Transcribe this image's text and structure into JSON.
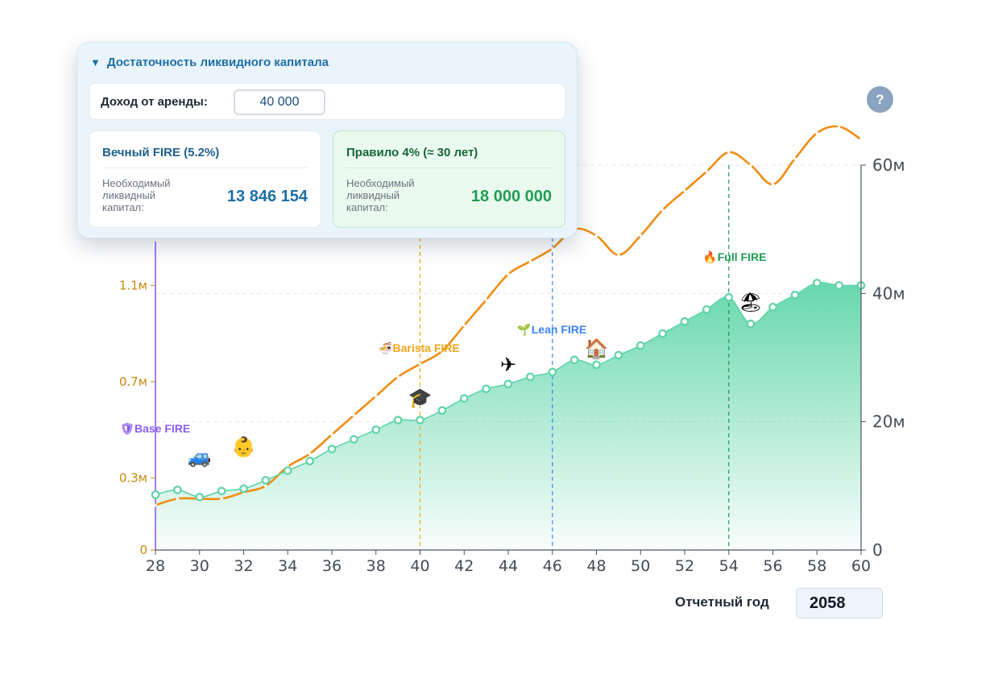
{
  "popup": {
    "title": "Достаточность ликвидного капитала",
    "rent": {
      "label": "Доход от аренды:",
      "value": "40 000"
    },
    "cards": [
      {
        "title": "Вечный FIRE (5.2%)",
        "subtitle": "Необходимый ликвидный капитал:",
        "value": "13 846 154",
        "color": "#1d6fa5"
      },
      {
        "title": "Правило 4% (≈ 30 лет)",
        "subtitle": "Необходимый ликвидный капитал:",
        "value": "18 000 000",
        "color": "#1f9d55"
      }
    ]
  },
  "help_button": {
    "label": "?"
  },
  "report_year": {
    "label": "Отчетный год",
    "value": "2058"
  },
  "colors": {
    "orange": "#f28c12",
    "teal": "#5fd3a8",
    "area_top": "#63d9ae",
    "purple": "#8b5cf6",
    "blue": "#3b82f6",
    "green": "#1f9d55",
    "barista": "#f2a516"
  },
  "chart_data": {
    "type": "line",
    "x": [
      28,
      29,
      30,
      31,
      32,
      33,
      34,
      35,
      36,
      37,
      38,
      39,
      40,
      41,
      42,
      43,
      44,
      45,
      46,
      47,
      48,
      49,
      50,
      51,
      52,
      53,
      54,
      55,
      56,
      57,
      58,
      59,
      60
    ],
    "x_ticks": [
      28,
      30,
      32,
      34,
      36,
      38,
      40,
      42,
      44,
      46,
      48,
      50,
      52,
      54,
      56,
      58,
      60
    ],
    "left_axis": {
      "ylim": [
        0,
        1.6
      ],
      "ticks": [
        0,
        0.3,
        0.7,
        1.1
      ],
      "tick_labels": [
        "0",
        "0.3м",
        "0.7м",
        "1.1м"
      ],
      "color": "#c98a0a"
    },
    "right_axis": {
      "ylim": [
        0,
        60
      ],
      "ticks": [
        0,
        20,
        40,
        60
      ],
      "tick_labels": [
        "0",
        "20м",
        "40м",
        "60м"
      ]
    },
    "grid": true,
    "series": [
      {
        "axis": "left",
        "style": "area",
        "values": [
          0.23,
          0.25,
          0.22,
          0.245,
          0.255,
          0.29,
          0.33,
          0.37,
          0.42,
          0.46,
          0.5,
          0.54,
          0.54,
          0.58,
          0.63,
          0.67,
          0.69,
          0.72,
          0.74,
          0.79,
          0.77,
          0.81,
          0.85,
          0.9,
          0.95,
          1.0,
          1.05,
          0.94,
          1.01,
          1.06,
          1.11,
          1.1,
          1.1
        ]
      },
      {
        "axis": "right",
        "style": "line",
        "values": [
          7,
          8,
          8,
          8,
          9,
          10,
          13,
          15,
          18,
          21,
          24,
          27,
          29,
          31,
          35,
          39,
          43,
          45,
          47,
          50,
          49,
          46,
          49,
          53,
          56,
          59,
          62,
          60,
          57,
          61,
          65,
          66,
          64
        ]
      }
    ],
    "milestones": [
      {
        "x": 28,
        "label": "Base FIRE",
        "icon": "🛡",
        "color": "#8b5cf6"
      },
      {
        "x": 40,
        "label": "Barista FIRE",
        "icon": "🍜",
        "color": "#f2a516"
      },
      {
        "x": 46,
        "label": "Lean FIRE",
        "icon": "🌱",
        "color": "#3b82f6"
      },
      {
        "x": 54,
        "label": "Full FIRE",
        "icon": "🔥",
        "color": "#1f9d55"
      }
    ],
    "events": [
      {
        "x": 30,
        "icon": "🚙"
      },
      {
        "x": 32,
        "icon": "👶"
      },
      {
        "x": 40,
        "icon": "🎓"
      },
      {
        "x": 44,
        "icon": "✈"
      },
      {
        "x": 48,
        "icon": "🏠"
      },
      {
        "x": 55,
        "icon": "🏖"
      }
    ]
  }
}
